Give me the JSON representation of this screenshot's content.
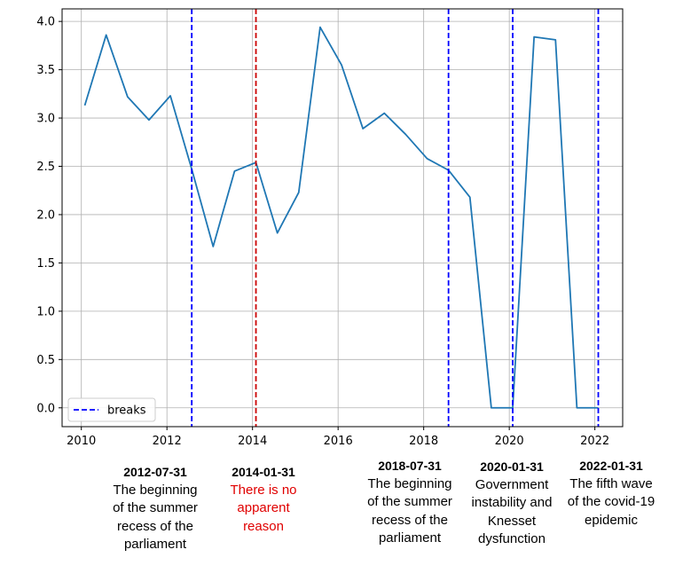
{
  "chart_data": {
    "type": "line",
    "title": "",
    "xlabel": "",
    "ylabel": "",
    "xlim": [
      2009.55,
      2022.65
    ],
    "ylim": [
      -0.195,
      4.13
    ],
    "grid": true,
    "legend_position": "lower-left",
    "x_ticks": [
      2010,
      2012,
      2014,
      2016,
      2018,
      2020,
      2022
    ],
    "x_tick_labels": [
      "2010",
      "2012",
      "2014",
      "2016",
      "2018",
      "2020",
      "2022"
    ],
    "y_ticks": [
      0.0,
      0.5,
      1.0,
      1.5,
      2.0,
      2.5,
      3.0,
      3.5,
      4.0
    ],
    "y_tick_labels": [
      "0.0",
      "0.5",
      "1.0",
      "1.5",
      "2.0",
      "2.5",
      "3.0",
      "3.5",
      "4.0"
    ],
    "series": [
      {
        "color": "#1f77b4",
        "points": [
          [
            2010.08,
            3.13
          ],
          [
            2010.58,
            3.86
          ],
          [
            2011.08,
            3.22
          ],
          [
            2011.58,
            2.98
          ],
          [
            2012.08,
            3.23
          ],
          [
            2012.58,
            2.47
          ],
          [
            2013.08,
            1.67
          ],
          [
            2013.58,
            2.45
          ],
          [
            2014.08,
            2.54
          ],
          [
            2014.58,
            1.81
          ],
          [
            2015.08,
            2.23
          ],
          [
            2015.58,
            3.94
          ],
          [
            2016.08,
            3.55
          ],
          [
            2016.58,
            2.89
          ],
          [
            2017.08,
            3.05
          ],
          [
            2017.58,
            2.83
          ],
          [
            2018.08,
            2.58
          ],
          [
            2018.58,
            2.46
          ],
          [
            2019.08,
            2.18
          ],
          [
            2019.58,
            0.0
          ],
          [
            2020.08,
            0.0
          ],
          [
            2020.58,
            3.84
          ],
          [
            2021.08,
            3.81
          ],
          [
            2021.58,
            0.0
          ],
          [
            2022.08,
            0.0
          ]
        ]
      }
    ],
    "breaks": [
      {
        "x": 2012.58,
        "color": "#0000ff"
      },
      {
        "x": 2014.08,
        "color": "#cc0000"
      },
      {
        "x": 2018.58,
        "color": "#0000ff"
      },
      {
        "x": 2020.08,
        "color": "#0000ff"
      },
      {
        "x": 2022.08,
        "color": "#0000ff"
      }
    ],
    "legend": [
      {
        "label": "breaks",
        "color": "#0000ff",
        "style": "dashed"
      }
    ]
  },
  "annotations": [
    {
      "date": "2012-07-31",
      "desc": "The beginning\nof the summer\nrecess of the\nparliament",
      "color": "#000000"
    },
    {
      "date": "2014-01-31",
      "desc": "There is no\napparent\nreason",
      "color": "#e00000"
    },
    {
      "date": "2018-07-31",
      "desc": "The beginning\nof the summer\nrecess of the\nparliament",
      "color": "#000000"
    },
    {
      "date": "2020-01-31",
      "desc": "Government\ninstability and\nKnesset\ndysfunction",
      "color": "#000000"
    },
    {
      "date": "2022-01-31",
      "desc": "The fifth wave\nof the covid-19\nepidemic",
      "color": "#000000"
    }
  ]
}
